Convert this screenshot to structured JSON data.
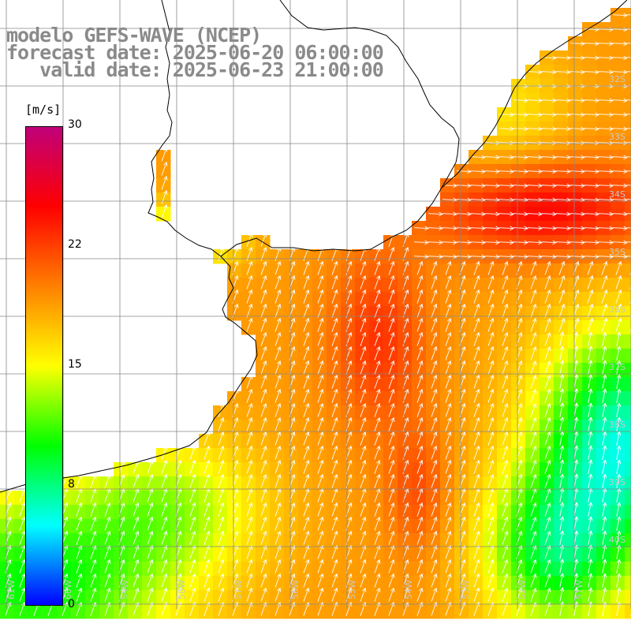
{
  "title": {
    "line1": "modelo GEFS-WAVE (NCEP)",
    "line2": "forecast date: 2025-06-20 06:00:00",
    "line3": "   valid date: 2025-06-23 21:00:00"
  },
  "colorbar": {
    "unit": "[m/s]",
    "min": 0,
    "max": 30,
    "ticks": [
      "30",
      "22",
      "15",
      "8",
      "0"
    ],
    "stops": [
      "#0000ff",
      "#00ffff",
      "#00ff00",
      "#ffff00",
      "#ff8000",
      "#ff0000",
      "#c0007a"
    ]
  },
  "lat_labels": [
    "32S",
    "33S",
    "34S",
    "35S",
    "36S",
    "37S",
    "38S",
    "39S",
    "40S"
  ],
  "lon_labels": [
    "61W",
    "60W",
    "59W",
    "58W",
    "57W",
    "56W",
    "55W",
    "54W",
    "53W",
    "52W",
    "51W"
  ],
  "chart_data": {
    "type": "heatmap",
    "variable": "wind speed",
    "unit": "m/s",
    "range": [
      0,
      30
    ],
    "lon_range_deg": [
      -61.5,
      -50.5
    ],
    "lat_range_deg": [
      -41.4,
      -30.5
    ]
  },
  "colors": {
    "grid": "#888888",
    "coast": "#000000",
    "arrows": "#ffffff",
    "title_gray": "#8a8a8a"
  }
}
